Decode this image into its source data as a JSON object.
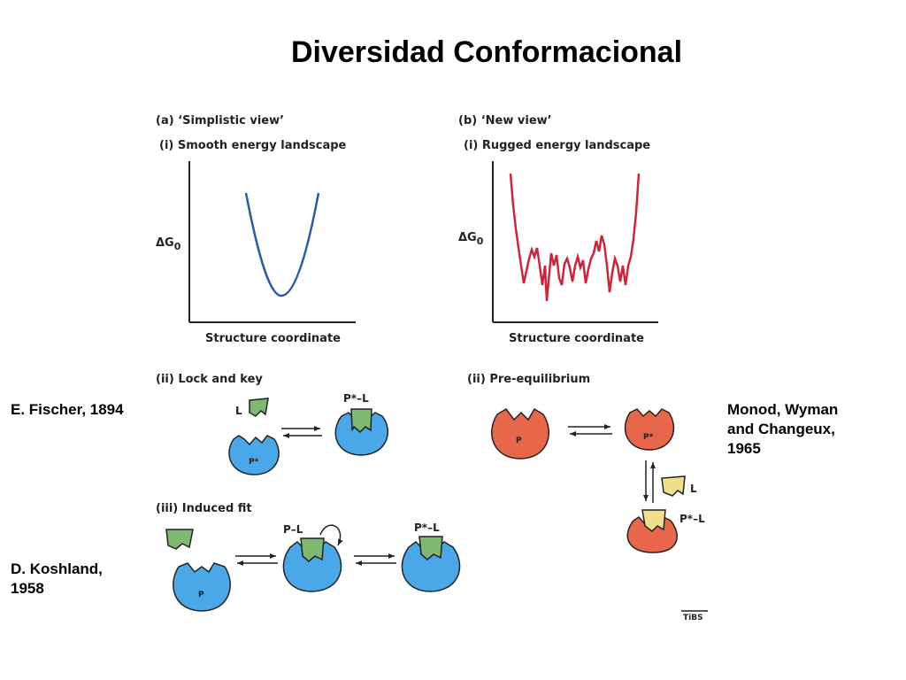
{
  "title": "Diversidad Conformacional",
  "attributions": {
    "fischer": "E. Fischer, 1894",
    "koshland_line1": "D. Koshland,",
    "koshland_line2": "1958",
    "monod_line1": "Monod, Wyman",
    "monod_line2": "and Changeux,",
    "monod_line3": "1965"
  },
  "panel_a": {
    "heading": "(a) ‘Simplistic view’",
    "sub_i": "(i) Smooth energy landscape",
    "y_label": "ΔG",
    "y_label_sub": "0",
    "x_label": "Structure coordinate",
    "sub_ii": "(ii) Lock and key",
    "sub_iii": "(iii) Induced fit",
    "curve_color": "#2a5aa8"
  },
  "panel_b": {
    "heading": "(b) ‘New view’",
    "sub_i": "(i) Rugged energy landscape",
    "y_label": "ΔG",
    "y_label_sub": "0",
    "x_label": "Structure coordinate",
    "sub_ii": "(ii) Pre-equilibrium",
    "curve_color": "#d0233a"
  },
  "molecule_labels": {
    "P": "P",
    "P_star": "P*",
    "L": "L",
    "P_star_L": "P*–L",
    "P_L": "P–L"
  },
  "colors": {
    "protein_blue": "#4aa8e8",
    "protein_red": "#e8664a",
    "ligand_green": "#7fb870",
    "ligand_yellow": "#f0e08a"
  },
  "footer_mark": "TiBS"
}
